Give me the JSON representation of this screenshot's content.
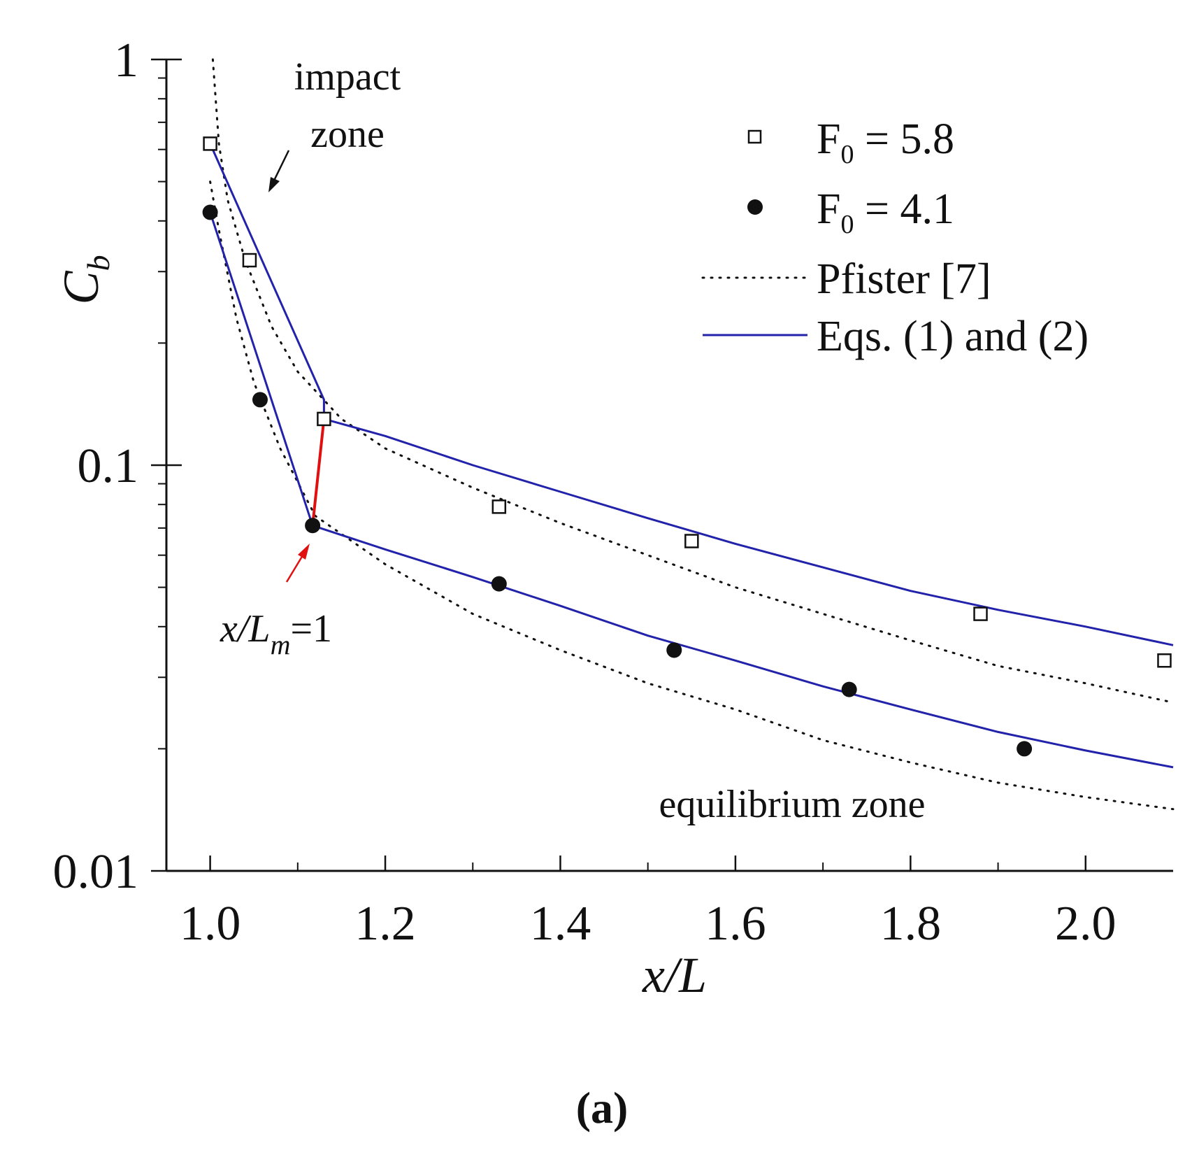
{
  "chart_data": {
    "type": "scatter",
    "title": "",
    "xlabel": "x/L",
    "ylabel": "C",
    "ylabel_sub": "b",
    "yscale": "log",
    "xlim": [
      0.95,
      2.1
    ],
    "ylim": [
      0.01,
      1
    ],
    "x_ticks": [
      {
        "value": 1.0,
        "label": "1.0"
      },
      {
        "value": 1.2,
        "label": "1.2"
      },
      {
        "value": 1.4,
        "label": "1.4"
      },
      {
        "value": 1.6,
        "label": "1.6"
      },
      {
        "value": 1.8,
        "label": "1.8"
      },
      {
        "value": 2.0,
        "label": "2.0"
      }
    ],
    "y_ticks": [
      {
        "value": 1,
        "label": "1"
      },
      {
        "value": 0.1,
        "label": "0.1"
      },
      {
        "value": 0.01,
        "label": "0.01"
      }
    ],
    "series": [
      {
        "name": "F0 = 5.8",
        "marker": "open-square",
        "points": [
          [
            1.0,
            0.62
          ],
          [
            1.045,
            0.32
          ],
          [
            1.13,
            0.13
          ],
          [
            1.33,
            0.079
          ],
          [
            1.55,
            0.065
          ],
          [
            1.88,
            0.043
          ],
          [
            2.09,
            0.033
          ]
        ]
      },
      {
        "name": "F0 = 4.1",
        "marker": "filled-circle",
        "points": [
          [
            1.0,
            0.42
          ],
          [
            1.057,
            0.145
          ],
          [
            1.117,
            0.071
          ],
          [
            1.33,
            0.051
          ],
          [
            1.53,
            0.035
          ],
          [
            1.73,
            0.028
          ],
          [
            1.93,
            0.02
          ]
        ]
      }
    ],
    "lines": [
      {
        "name": "Pfister [7] (F0 = 5.8)",
        "style": "dotted",
        "color": "#111111",
        "points": [
          [
            1.003,
            1.0
          ],
          [
            1.01,
            0.62
          ],
          [
            1.02,
            0.45
          ],
          [
            1.04,
            0.32
          ],
          [
            1.07,
            0.22
          ],
          [
            1.1,
            0.17
          ],
          [
            1.15,
            0.13
          ],
          [
            1.2,
            0.11
          ],
          [
            1.3,
            0.088
          ],
          [
            1.4,
            0.072
          ],
          [
            1.5,
            0.06
          ],
          [
            1.6,
            0.05
          ],
          [
            1.7,
            0.043
          ],
          [
            1.8,
            0.037
          ],
          [
            1.9,
            0.032
          ],
          [
            2.0,
            0.029
          ],
          [
            2.1,
            0.026
          ]
        ]
      },
      {
        "name": "Pfister [7] (F0 = 4.1)",
        "style": "dotted",
        "color": "#111111",
        "points": [
          [
            1.0,
            0.5
          ],
          [
            1.01,
            0.38
          ],
          [
            1.03,
            0.23
          ],
          [
            1.05,
            0.16
          ],
          [
            1.08,
            0.11
          ],
          [
            1.12,
            0.075
          ],
          [
            1.2,
            0.057
          ],
          [
            1.3,
            0.043
          ],
          [
            1.4,
            0.035
          ],
          [
            1.5,
            0.029
          ],
          [
            1.6,
            0.025
          ],
          [
            1.7,
            0.021
          ],
          [
            1.8,
            0.0185
          ],
          [
            1.9,
            0.0165
          ],
          [
            2.0,
            0.0152
          ],
          [
            2.1,
            0.0142
          ]
        ]
      },
      {
        "name": "Eqs. (1) and (2) (F0 = 5.8)",
        "style": "solid",
        "color": "#2222aa",
        "points": [
          [
            1.0,
            0.62
          ],
          [
            1.13,
            0.145
          ],
          [
            1.13,
            0.13
          ],
          [
            1.2,
            0.118
          ],
          [
            1.3,
            0.1
          ],
          [
            1.4,
            0.086
          ],
          [
            1.5,
            0.074
          ],
          [
            1.6,
            0.064
          ],
          [
            1.7,
            0.056
          ],
          [
            1.8,
            0.049
          ],
          [
            1.9,
            0.044
          ],
          [
            2.0,
            0.04
          ],
          [
            2.1,
            0.036
          ]
        ]
      },
      {
        "name": "Eqs. (1) and (2) (F0 = 4.1)",
        "style": "solid",
        "color": "#2222aa",
        "points": [
          [
            1.0,
            0.42
          ],
          [
            1.117,
            0.071
          ],
          [
            1.2,
            0.062
          ],
          [
            1.3,
            0.053
          ],
          [
            1.4,
            0.045
          ],
          [
            1.5,
            0.038
          ],
          [
            1.6,
            0.033
          ],
          [
            1.7,
            0.0285
          ],
          [
            1.8,
            0.025
          ],
          [
            1.9,
            0.022
          ],
          [
            2.0,
            0.0198
          ],
          [
            2.1,
            0.018
          ]
        ]
      },
      {
        "name": "x/Lm = 1 connector",
        "style": "solid",
        "color": "#e01010",
        "points": [
          [
            1.117,
            0.071
          ],
          [
            1.13,
            0.13
          ]
        ]
      }
    ],
    "legend": {
      "position": "top-right",
      "entries": [
        {
          "symbol": "open-square",
          "label": "F",
          "sub": "0",
          "suffix": " = 5.8"
        },
        {
          "symbol": "filled-circle",
          "label": "F",
          "sub": "0",
          "suffix": " = 4.1"
        },
        {
          "symbol": "dotted-line",
          "label": "Pfister [7]"
        },
        {
          "symbol": "solid-line",
          "label": "Eqs. (1) and (2)"
        }
      ]
    },
    "annotations": {
      "impact_line1": "impact",
      "impact_line2": "zone",
      "xlm_main": "x/L",
      "xlm_sub": "m",
      "xlm_suffix": "=1",
      "equilibrium": "equilibrium zone"
    },
    "panel_label": "(a)"
  },
  "colors": {
    "blue_line": "#2222aa",
    "red_line": "#e01010",
    "axis": "#111111"
  }
}
